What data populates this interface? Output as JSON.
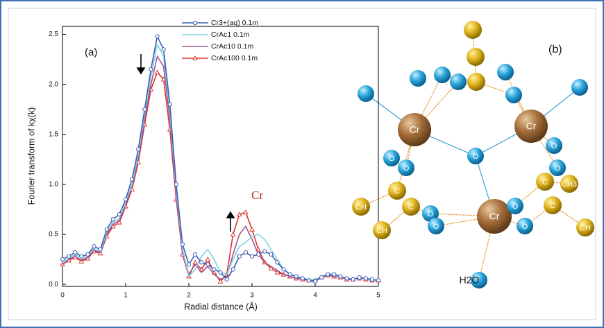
{
  "chart_data": {
    "type": "line",
    "ylabel": "Fourier transform of kχ(k)",
    "xlabel": "Radial distance (Å)",
    "annotations": [
      "(a)",
      "Cr"
    ],
    "x": [
      0,
      0.1,
      0.2,
      0.3,
      0.4,
      0.5,
      0.6,
      0.7,
      0.8,
      0.9,
      1,
      1.1,
      1.2,
      1.3,
      1.4,
      1.5,
      1.6,
      1.7,
      1.8,
      1.9,
      2,
      2.1,
      2.2,
      2.3,
      2.4,
      2.5,
      2.6,
      2.7,
      2.8,
      2.9,
      3,
      3.1,
      3.2,
      3.3,
      3.4,
      3.5,
      3.6,
      3.7,
      3.8,
      3.9,
      4,
      4.1,
      4.2,
      4.3,
      4.4,
      4.5,
      4.6,
      4.7,
      4.8,
      4.9,
      5
    ],
    "series": [
      {
        "name": "Cr3+(aq)  0.1m",
        "color": "#3b5bb5",
        "marker": "circle",
        "values": [
          0.25,
          0.28,
          0.32,
          0.28,
          0.3,
          0.38,
          0.35,
          0.55,
          0.65,
          0.7,
          0.85,
          1.05,
          1.35,
          1.75,
          2.15,
          2.48,
          2.35,
          1.8,
          1.0,
          0.4,
          0.2,
          0.3,
          0.22,
          0.2,
          0.15,
          0.12,
          0.05,
          0.15,
          0.28,
          0.32,
          0.28,
          0.3,
          0.33,
          0.3,
          0.22,
          0.15,
          0.1,
          0.08,
          0.06,
          0.04,
          0.03,
          0.07,
          0.1,
          0.1,
          0.08,
          0.06,
          0.05,
          0.07,
          0.06,
          0.05,
          0.04
        ]
      },
      {
        "name": "CrAc1    0.1m",
        "color": "#7fd3e0",
        "marker": "none",
        "values": [
          0.22,
          0.26,
          0.3,
          0.26,
          0.28,
          0.36,
          0.33,
          0.52,
          0.62,
          0.66,
          0.82,
          1.0,
          1.3,
          1.7,
          2.08,
          2.4,
          2.28,
          1.72,
          0.95,
          0.35,
          0.08,
          0.15,
          0.28,
          0.35,
          0.25,
          0.12,
          0.1,
          0.25,
          0.38,
          0.42,
          0.48,
          0.5,
          0.45,
          0.35,
          0.25,
          0.15,
          0.1,
          0.08,
          0.06,
          0.05,
          0.05,
          0.08,
          0.1,
          0.09,
          0.07,
          0.06,
          0.05,
          0.06,
          0.05,
          0.04,
          0.04
        ]
      },
      {
        "name": "CrAc10  0.1m",
        "color": "#a0528f",
        "marker": "none",
        "values": [
          0.2,
          0.25,
          0.28,
          0.24,
          0.27,
          0.34,
          0.32,
          0.5,
          0.6,
          0.64,
          0.8,
          0.98,
          1.26,
          1.65,
          2.0,
          2.28,
          2.18,
          1.65,
          0.9,
          0.32,
          0.1,
          0.2,
          0.12,
          0.18,
          0.1,
          0.05,
          0.08,
          0.3,
          0.5,
          0.58,
          0.45,
          0.3,
          0.22,
          0.18,
          0.14,
          0.1,
          0.08,
          0.06,
          0.05,
          0.04,
          0.04,
          0.07,
          0.09,
          0.08,
          0.07,
          0.05,
          0.05,
          0.06,
          0.05,
          0.04,
          0.04
        ]
      },
      {
        "name": "CrAc100 0.1m",
        "color": "#e0302a",
        "marker": "triangle",
        "values": [
          0.2,
          0.24,
          0.27,
          0.23,
          0.26,
          0.33,
          0.31,
          0.48,
          0.58,
          0.62,
          0.78,
          0.95,
          1.22,
          1.6,
          1.95,
          2.12,
          2.05,
          1.55,
          0.85,
          0.3,
          0.08,
          0.22,
          0.15,
          0.25,
          0.12,
          0.03,
          0.1,
          0.5,
          0.7,
          0.72,
          0.55,
          0.35,
          0.22,
          0.16,
          0.12,
          0.1,
          0.08,
          0.06,
          0.05,
          0.04,
          0.04,
          0.07,
          0.09,
          0.08,
          0.07,
          0.05,
          0.05,
          0.06,
          0.05,
          0.04,
          0.04
        ]
      }
    ],
    "xlim": [
      0,
      5
    ],
    "xticks": [
      0,
      1,
      2,
      3,
      4,
      5
    ],
    "ylim": [
      -0.02,
      2.58
    ],
    "yticks": [
      {
        "value": 0,
        "label": "0.0"
      },
      0.5,
      {
        "value": 1,
        "label": "1.0"
      },
      1.5,
      {
        "value": 2,
        "label": "2.0"
      },
      2.5
    ],
    "grid": false
  },
  "diagram": {
    "label": "(b)",
    "atoms": [
      "Cr",
      "Cr",
      "Cr",
      "O",
      "O",
      "O",
      "O",
      "O",
      "O",
      "O",
      "O",
      "O",
      "C",
      "C",
      "C",
      "C",
      "CH",
      "CH",
      "CH3",
      "CH",
      "H2O"
    ]
  }
}
